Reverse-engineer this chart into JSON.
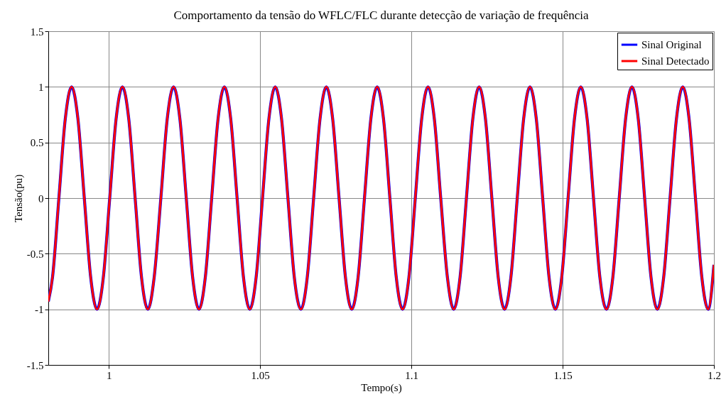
{
  "chart_data": {
    "type": "line",
    "title": "Comportamento da tensão do WFLC/FLC durante detecção de variação de frequência",
    "xlabel": "Tempo(s)",
    "ylabel": "Tensão(pu)",
    "x": [
      0.98,
      0.9814,
      0.9835,
      0.9856,
      0.9877,
      0.9898,
      0.9919,
      0.994,
      0.9961,
      0.9982,
      1.0003,
      1.0024,
      1.0045,
      1.0066,
      1.0087,
      1.0108,
      1.0129,
      1.015,
      1.0172,
      1.0193,
      1.0214,
      1.0235,
      1.0256,
      1.0277,
      1.0298,
      1.0319,
      1.034,
      1.0361,
      1.0382,
      1.0403,
      1.0424,
      1.0445,
      1.0466,
      1.0487,
      1.0508,
      1.0529,
      1.055,
      1.0571,
      1.0592,
      1.0613,
      1.0635,
      1.0656,
      1.0677,
      1.0698,
      1.0719,
      1.074,
      1.0761,
      1.0782,
      1.0803,
      1.0824,
      1.0845,
      1.0866,
      1.0887,
      1.0908,
      1.0929,
      1.095,
      1.0971,
      1.0992,
      1.1013,
      1.1034,
      1.1055,
      1.1076,
      1.1097,
      1.1119,
      1.114,
      1.1161,
      1.1182,
      1.1203,
      1.1224,
      1.1245,
      1.1266,
      1.1287,
      1.1308,
      1.1329,
      1.135,
      1.1371,
      1.1392,
      1.1413,
      1.1434,
      1.1455,
      1.1476,
      1.1497,
      1.1518,
      1.1539,
      1.156,
      1.1581,
      1.1602,
      1.1623,
      1.1645,
      1.1666,
      1.1687,
      1.1708,
      1.1729,
      1.175,
      1.1771,
      1.1792,
      1.1813,
      1.1834,
      1.1855,
      1.1876,
      1.1897,
      1.1918,
      1.1939,
      1.196,
      1.1981,
      1.2
    ],
    "series": [
      {
        "name": "Sinal Original",
        "color": "#0000ff",
        "values": [
          -0.93,
          -0.71,
          0,
          0.71,
          1,
          0.71,
          0,
          -0.71,
          -1,
          -0.71,
          0,
          0.71,
          1,
          0.71,
          0,
          -0.71,
          -1,
          -0.71,
          0,
          0.71,
          1,
          0.71,
          0,
          -0.71,
          -1,
          -0.71,
          0,
          0.71,
          1,
          0.71,
          0,
          -0.71,
          -1,
          -0.71,
          0,
          0.71,
          1,
          0.71,
          0,
          -0.71,
          -1,
          -0.71,
          0,
          0.71,
          1,
          0.71,
          0,
          -0.71,
          -1,
          -0.71,
          0,
          0.71,
          1,
          0.71,
          0,
          -0.71,
          -1,
          -0.71,
          0,
          0.71,
          1,
          0.71,
          0,
          -0.71,
          -1,
          -0.71,
          0,
          0.71,
          1,
          0.71,
          0,
          -0.71,
          -1,
          -0.71,
          0,
          0.71,
          1,
          0.71,
          0,
          -0.71,
          -1,
          -0.71,
          0,
          0.71,
          1,
          0.71,
          0,
          -0.71,
          -1,
          -0.71,
          0,
          0.71,
          1,
          0.71,
          0,
          -0.71,
          -1,
          -0.71,
          0,
          0.71,
          1,
          0.71,
          0,
          -0.71,
          -1,
          -0.6
        ]
      },
      {
        "name": "Sinal Detectado",
        "color": "#ff0000",
        "values": [
          -0.93,
          -0.71,
          0,
          0.71,
          1,
          0.71,
          0,
          -0.71,
          -1,
          -0.71,
          0,
          0.71,
          1,
          0.71,
          0,
          -0.71,
          -1,
          -0.71,
          0,
          0.71,
          1,
          0.71,
          0,
          -0.71,
          -1,
          -0.71,
          0,
          0.71,
          1,
          0.71,
          0,
          -0.71,
          -1,
          -0.71,
          0,
          0.71,
          1,
          0.71,
          0,
          -0.71,
          -1,
          -0.71,
          0,
          0.71,
          1,
          0.71,
          0,
          -0.71,
          -1,
          -0.71,
          0,
          0.71,
          1,
          0.71,
          0,
          -0.71,
          -1,
          -0.71,
          0,
          0.71,
          1,
          0.71,
          0,
          -0.71,
          -1,
          -0.71,
          0,
          0.71,
          1,
          0.71,
          0,
          -0.71,
          -1,
          -0.71,
          0,
          0.71,
          1,
          0.71,
          0,
          -0.71,
          -1,
          -0.71,
          0,
          0.71,
          1,
          0.71,
          0,
          -0.71,
          -1,
          -0.71,
          0,
          0.71,
          1,
          0.71,
          0,
          -0.71,
          -1,
          -0.71,
          0,
          0.71,
          1,
          0.71,
          0,
          -0.71,
          -1,
          -0.6
        ]
      }
    ],
    "xlim": [
      0.98,
      1.2
    ],
    "xticks": [
      1,
      1.05,
      1.1,
      1.15,
      1.2
    ],
    "ylim": [
      -1.5,
      1.5
    ],
    "yticks": [
      -1.5,
      -1,
      -0.5,
      0,
      0.5,
      1,
      1.5
    ],
    "grid": true,
    "legend": "top right",
    "line_style": "solid"
  }
}
